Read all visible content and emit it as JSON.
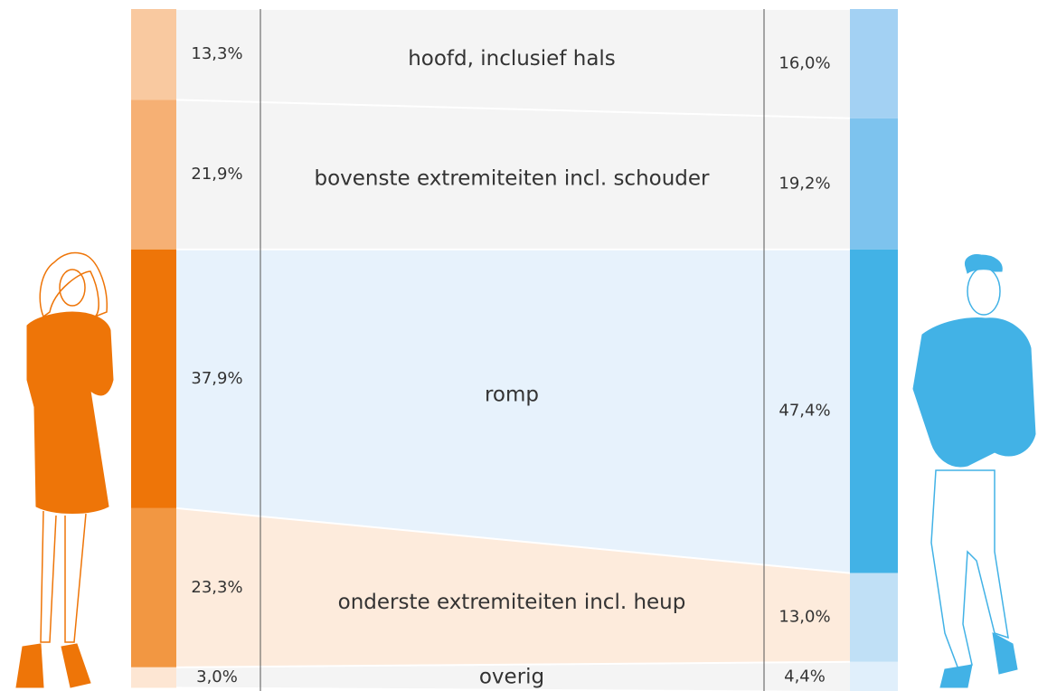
{
  "chart_data": {
    "type": "ribbon",
    "categories": [
      "hoofd, inclusief hals",
      "bovenste extremiteiten incl. schouder",
      "romp",
      "onderste extremiteiten incl. heup",
      "overig"
    ],
    "band_colors": [
      "#f4f4f4",
      "#f4f4f4",
      "#e7f2fc",
      "#fdebdc",
      "#f4f4f4"
    ],
    "series": [
      {
        "values": [
          13.3,
          21.9,
          37.9,
          23.3,
          3.0
        ],
        "value_labels": [
          "13,3%",
          "21,9%",
          "37,9%",
          "23,3%",
          "3,0%"
        ],
        "colors": [
          "#f9c9a0",
          "#f6b074",
          "#ee7508",
          "#f29742",
          "#fde6d3"
        ]
      },
      {
        "values": [
          16.0,
          19.2,
          47.4,
          13.0,
          4.4
        ],
        "value_labels": [
          "16,0%",
          "19,2%",
          "47,4%",
          "13,0%",
          "4,4%"
        ],
        "colors": [
          "#a3d1f3",
          "#7dc3ee",
          "#42b2e6",
          "#c0e0f6",
          "#e0effb"
        ]
      }
    ]
  }
}
